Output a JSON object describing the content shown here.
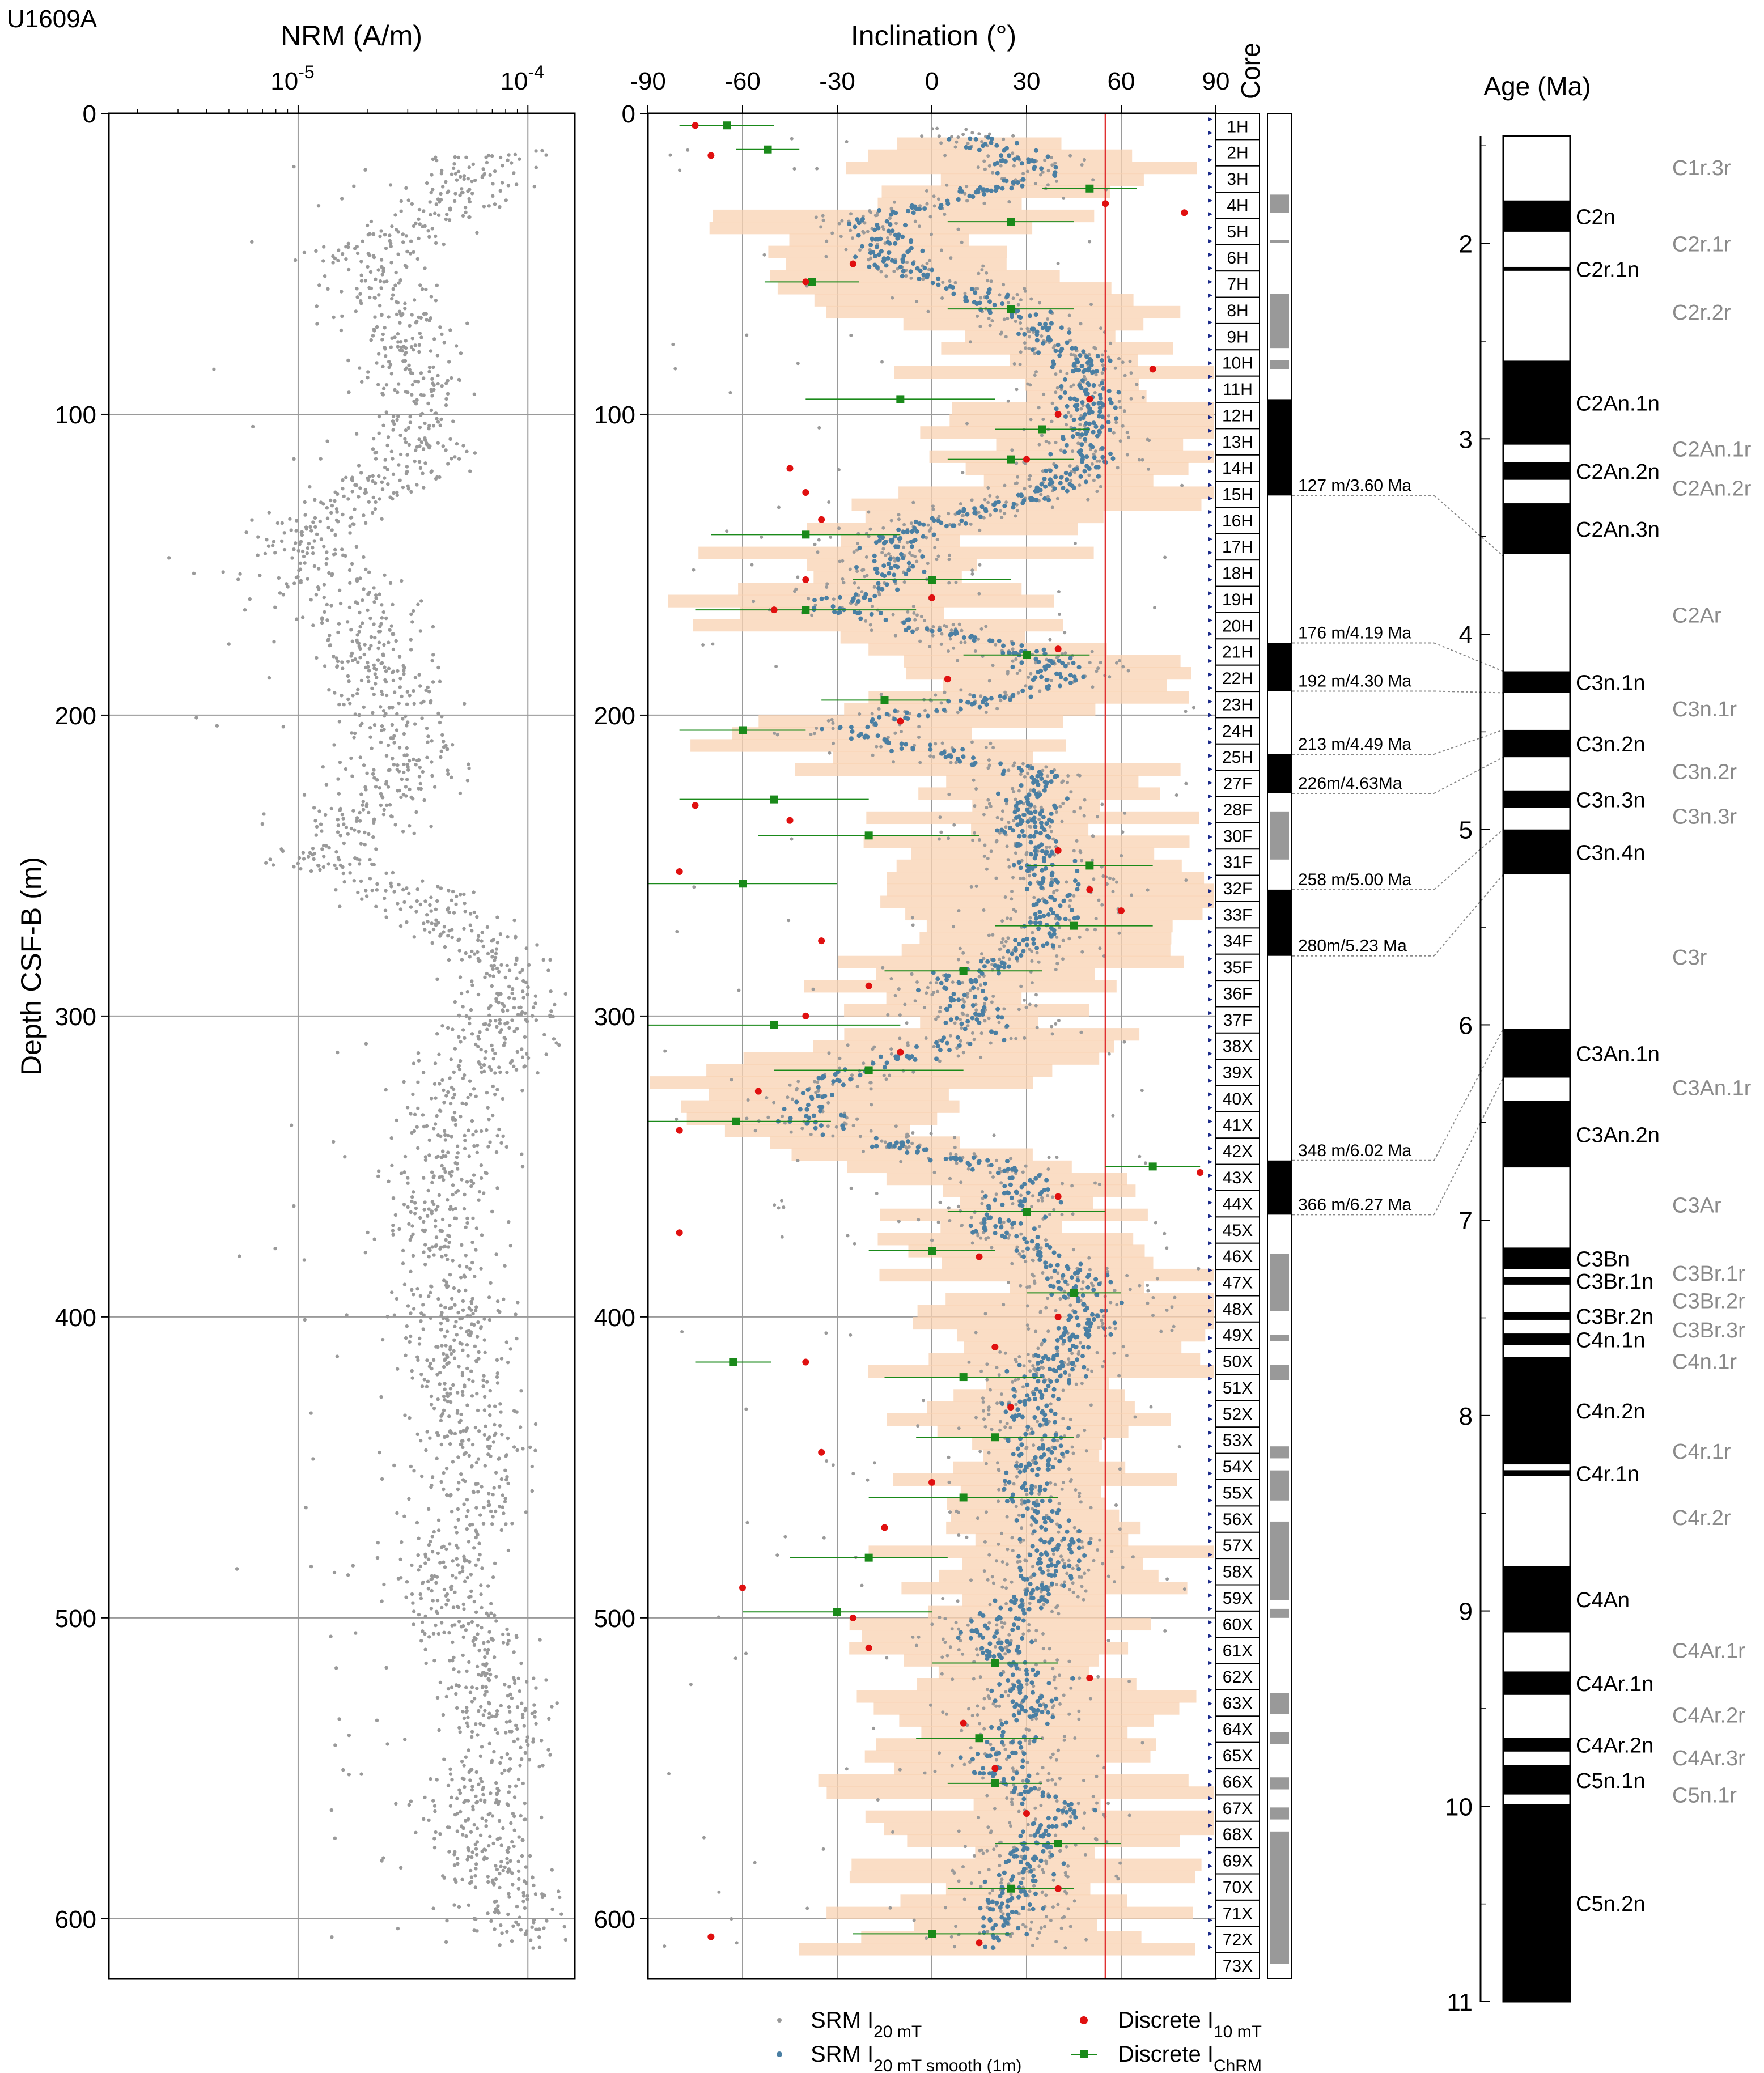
{
  "site": "U1609A",
  "colors": {
    "grid": "#9a9a9a",
    "srm": "#9a9a9a",
    "smooth": "#4a7fa3",
    "band": "#f8d2b2",
    "discrete10": "#e01010",
    "chrm": "#1a8a1a",
    "gad": "#e03030",
    "coreTri": "#1a2a8a",
    "black": "#000000"
  },
  "chart_data": [
    {
      "name": "NRM",
      "type": "scatter",
      "xlabel": "NRM (A/m)",
      "ylabel": "Depth CSF-B (m)",
      "xscale": "log",
      "xlim": [
        1.5e-06,
        0.00016
      ],
      "ylim": [
        0,
        620
      ],
      "x_ticks": [
        {
          "value": 1e-05,
          "base": "10",
          "exp": "-5"
        },
        {
          "value": 0.0001,
          "base": "10",
          "exp": "-4"
        }
      ],
      "y_ticks": [
        0,
        100,
        200,
        300,
        400,
        500,
        600
      ],
      "grid": true,
      "depth_profile": [
        {
          "depth": 10,
          "median": 8e-05
        },
        {
          "depth": 45,
          "median": 1.8e-05
        },
        {
          "depth": 75,
          "median": 3e-05
        },
        {
          "depth": 110,
          "median": 3.5e-05
        },
        {
          "depth": 140,
          "median": 1e-05
        },
        {
          "depth": 180,
          "median": 2.2e-05
        },
        {
          "depth": 215,
          "median": 3e-05
        },
        {
          "depth": 250,
          "median": 1.3e-05
        },
        {
          "depth": 290,
          "median": 9e-05
        },
        {
          "depth": 330,
          "median": 4.5e-05
        },
        {
          "depth": 370,
          "median": 4e-05
        },
        {
          "depth": 410,
          "median": 5e-05
        },
        {
          "depth": 450,
          "median": 6e-05
        },
        {
          "depth": 490,
          "median": 4e-05
        },
        {
          "depth": 530,
          "median": 8e-05
        },
        {
          "depth": 570,
          "median": 6e-05
        },
        {
          "depth": 605,
          "median": 9e-05
        }
      ]
    },
    {
      "name": "Inclination",
      "type": "scatter",
      "xlabel": "Inclination (°)",
      "xlim": [
        -90,
        90
      ],
      "ylim": [
        0,
        620
      ],
      "x_ticks": [
        -90,
        -60,
        -30,
        0,
        30,
        60,
        90
      ],
      "y_ticks": [
        0,
        100,
        200,
        300,
        400,
        500,
        600
      ],
      "grid": true,
      "gad_inclination": 55,
      "smooth_profile": [
        {
          "depth": 5,
          "inc": 10
        },
        {
          "depth": 20,
          "inc": 35
        },
        {
          "depth": 35,
          "inc": -20
        },
        {
          "depth": 50,
          "inc": -10
        },
        {
          "depth": 65,
          "inc": 25
        },
        {
          "depth": 80,
          "inc": 45
        },
        {
          "depth": 95,
          "inc": 50
        },
        {
          "depth": 110,
          "inc": 50
        },
        {
          "depth": 125,
          "inc": 40
        },
        {
          "depth": 140,
          "inc": -10
        },
        {
          "depth": 155,
          "inc": -15
        },
        {
          "depth": 165,
          "inc": -30
        },
        {
          "depth": 180,
          "inc": 35
        },
        {
          "depth": 190,
          "inc": 40
        },
        {
          "depth": 205,
          "inc": -30
        },
        {
          "depth": 220,
          "inc": 35
        },
        {
          "depth": 240,
          "inc": 30
        },
        {
          "depth": 260,
          "inc": 40
        },
        {
          "depth": 275,
          "inc": 35
        },
        {
          "depth": 290,
          "inc": 5
        },
        {
          "depth": 305,
          "inc": 20
        },
        {
          "depth": 320,
          "inc": -30
        },
        {
          "depth": 335,
          "inc": -40
        },
        {
          "depth": 355,
          "inc": 35
        },
        {
          "depth": 370,
          "inc": 20
        },
        {
          "depth": 385,
          "inc": 45
        },
        {
          "depth": 400,
          "inc": 50
        },
        {
          "depth": 415,
          "inc": 40
        },
        {
          "depth": 430,
          "inc": 30
        },
        {
          "depth": 445,
          "inc": 35
        },
        {
          "depth": 460,
          "inc": 30
        },
        {
          "depth": 475,
          "inc": 40
        },
        {
          "depth": 490,
          "inc": 35
        },
        {
          "depth": 505,
          "inc": 15
        },
        {
          "depth": 520,
          "inc": 30
        },
        {
          "depth": 535,
          "inc": 30
        },
        {
          "depth": 550,
          "inc": 20
        },
        {
          "depth": 565,
          "inc": 40
        },
        {
          "depth": 580,
          "inc": 30
        },
        {
          "depth": 595,
          "inc": 25
        },
        {
          "depth": 610,
          "inc": 20
        }
      ],
      "discrete_10mT": [
        {
          "depth": 4,
          "inc": -75
        },
        {
          "depth": 14,
          "inc": -70
        },
        {
          "depth": 30,
          "inc": 55
        },
        {
          "depth": 33,
          "inc": 80
        },
        {
          "depth": 50,
          "inc": -25
        },
        {
          "depth": 56,
          "inc": -40
        },
        {
          "depth": 85,
          "inc": 70
        },
        {
          "depth": 95,
          "inc": 50
        },
        {
          "depth": 100,
          "inc": 40
        },
        {
          "depth": 115,
          "inc": 30
        },
        {
          "depth": 118,
          "inc": -45
        },
        {
          "depth": 126,
          "inc": -40
        },
        {
          "depth": 135,
          "inc": -35
        },
        {
          "depth": 155,
          "inc": -40
        },
        {
          "depth": 161,
          "inc": 0
        },
        {
          "depth": 165,
          "inc": -50
        },
        {
          "depth": 178,
          "inc": 40
        },
        {
          "depth": 188,
          "inc": 5
        },
        {
          "depth": 202,
          "inc": -10
        },
        {
          "depth": 230,
          "inc": -75
        },
        {
          "depth": 235,
          "inc": -45
        },
        {
          "depth": 245,
          "inc": 40
        },
        {
          "depth": 252,
          "inc": -80
        },
        {
          "depth": 258,
          "inc": 50
        },
        {
          "depth": 265,
          "inc": 60
        },
        {
          "depth": 275,
          "inc": -35
        },
        {
          "depth": 290,
          "inc": -20
        },
        {
          "depth": 300,
          "inc": -40
        },
        {
          "depth": 312,
          "inc": -10
        },
        {
          "depth": 325,
          "inc": -55
        },
        {
          "depth": 338,
          "inc": -80
        },
        {
          "depth": 352,
          "inc": 85
        },
        {
          "depth": 360,
          "inc": 40
        },
        {
          "depth": 372,
          "inc": -80
        },
        {
          "depth": 380,
          "inc": 15
        },
        {
          "depth": 400,
          "inc": 40
        },
        {
          "depth": 410,
          "inc": 20
        },
        {
          "depth": 415,
          "inc": -40
        },
        {
          "depth": 430,
          "inc": 25
        },
        {
          "depth": 445,
          "inc": -35
        },
        {
          "depth": 455,
          "inc": 0
        },
        {
          "depth": 470,
          "inc": -15
        },
        {
          "depth": 490,
          "inc": -60
        },
        {
          "depth": 500,
          "inc": -25
        },
        {
          "depth": 510,
          "inc": -20
        },
        {
          "depth": 520,
          "inc": 50
        },
        {
          "depth": 535,
          "inc": 10
        },
        {
          "depth": 550,
          "inc": 20
        },
        {
          "depth": 565,
          "inc": 30
        },
        {
          "depth": 590,
          "inc": 40
        },
        {
          "depth": 606,
          "inc": -70
        },
        {
          "depth": 608,
          "inc": 15
        }
      ],
      "discrete_chrm": [
        {
          "depth": 4,
          "inc": -65,
          "err": 15
        },
        {
          "depth": 12,
          "inc": -52,
          "err": 10
        },
        {
          "depth": 25,
          "inc": 50,
          "err": 15
        },
        {
          "depth": 36,
          "inc": 25,
          "err": 20
        },
        {
          "depth": 56,
          "inc": -38,
          "err": 15
        },
        {
          "depth": 65,
          "inc": 25,
          "err": 20
        },
        {
          "depth": 95,
          "inc": -10,
          "err": 30
        },
        {
          "depth": 105,
          "inc": 35,
          "err": 15
        },
        {
          "depth": 115,
          "inc": 25,
          "err": 20
        },
        {
          "depth": 140,
          "inc": -40,
          "err": 30
        },
        {
          "depth": 155,
          "inc": 0,
          "err": 25
        },
        {
          "depth": 165,
          "inc": -40,
          "err": 35
        },
        {
          "depth": 180,
          "inc": 30,
          "err": 20
        },
        {
          "depth": 195,
          "inc": -15,
          "err": 20
        },
        {
          "depth": 205,
          "inc": -60,
          "err": 20
        },
        {
          "depth": 228,
          "inc": -50,
          "err": 30
        },
        {
          "depth": 240,
          "inc": -20,
          "err": 35
        },
        {
          "depth": 250,
          "inc": 50,
          "err": 20
        },
        {
          "depth": 256,
          "inc": -60,
          "err": 30
        },
        {
          "depth": 270,
          "inc": 45,
          "err": 25
        },
        {
          "depth": 285,
          "inc": 10,
          "err": 25
        },
        {
          "depth": 303,
          "inc": -50,
          "err": 40
        },
        {
          "depth": 318,
          "inc": -20,
          "err": 30
        },
        {
          "depth": 335,
          "inc": -62,
          "err": 30
        },
        {
          "depth": 350,
          "inc": 70,
          "err": 15
        },
        {
          "depth": 365,
          "inc": 30,
          "err": 25
        },
        {
          "depth": 378,
          "inc": 0,
          "err": 20
        },
        {
          "depth": 392,
          "inc": 45,
          "err": 15
        },
        {
          "depth": 415,
          "inc": -63,
          "err": 12
        },
        {
          "depth": 420,
          "inc": 10,
          "err": 25
        },
        {
          "depth": 440,
          "inc": 20,
          "err": 25
        },
        {
          "depth": 460,
          "inc": 10,
          "err": 30
        },
        {
          "depth": 480,
          "inc": -20,
          "err": 25
        },
        {
          "depth": 498,
          "inc": -30,
          "err": 30
        },
        {
          "depth": 515,
          "inc": 20,
          "err": 20
        },
        {
          "depth": 540,
          "inc": 15,
          "err": 20
        },
        {
          "depth": 555,
          "inc": 20,
          "err": 15
        },
        {
          "depth": 575,
          "inc": 40,
          "err": 20
        },
        {
          "depth": 590,
          "inc": 25,
          "err": 20
        },
        {
          "depth": 605,
          "inc": 0,
          "err": 25
        }
      ]
    },
    {
      "name": "Age",
      "type": "column",
      "ylabel": "Age (Ma)",
      "ylim": [
        1.45,
        11
      ],
      "y_ticks": [
        2,
        3,
        4,
        5,
        6,
        7,
        8,
        9,
        10,
        11
      ],
      "normal": [
        {
          "from": 1.78,
          "to": 1.94,
          "label": "C2n"
        },
        {
          "from": 2.12,
          "to": 2.14,
          "label": "C2r.1n"
        },
        {
          "from": 2.6,
          "to": 3.03,
          "label": "C2An.1n"
        },
        {
          "from": 3.12,
          "to": 3.21,
          "label": "C2An.2n"
        },
        {
          "from": 3.33,
          "to": 3.59,
          "label": "C2An.3n"
        },
        {
          "from": 4.19,
          "to": 4.3,
          "label": "C3n.1n"
        },
        {
          "from": 4.49,
          "to": 4.63,
          "label": "C3n.2n"
        },
        {
          "from": 4.8,
          "to": 4.89,
          "label": "C3n.3n"
        },
        {
          "from": 5.0,
          "to": 5.23,
          "label": "C3n.4n"
        },
        {
          "from": 6.02,
          "to": 6.27,
          "label": "C3An.1n"
        },
        {
          "from": 6.39,
          "to": 6.73,
          "label": "C3An.2n"
        },
        {
          "from": 7.14,
          "to": 7.25,
          "label": "C3Bn"
        },
        {
          "from": 7.29,
          "to": 7.33,
          "label": "C3Br.1n"
        },
        {
          "from": 7.47,
          "to": 7.51,
          "label": "C3Br.2n"
        },
        {
          "from": 7.58,
          "to": 7.64,
          "label": "C4n.1n"
        },
        {
          "from": 7.7,
          "to": 8.25,
          "label": "C4n.2n"
        },
        {
          "from": 8.28,
          "to": 8.31,
          "label": "C4r.1n"
        },
        {
          "from": 8.77,
          "to": 9.11,
          "label": "C4An"
        },
        {
          "from": 9.31,
          "to": 9.43,
          "label": "C4Ar.1n"
        },
        {
          "from": 9.65,
          "to": 9.72,
          "label": "C4Ar.2n"
        },
        {
          "from": 9.79,
          "to": 9.94,
          "label": "C5n.1n"
        },
        {
          "from": 9.99,
          "to": 11.05,
          "label": "C5n.2n"
        }
      ],
      "reversed_labels": [
        {
          "age": 1.61,
          "label": "C1r.3r"
        },
        {
          "age": 2.0,
          "label": "C2r.1r"
        },
        {
          "age": 2.35,
          "label": "C2r.2r"
        },
        {
          "age": 3.05,
          "label": "C2An.1r"
        },
        {
          "age": 3.25,
          "label": "C2An.2r"
        },
        {
          "age": 3.9,
          "label": "C2Ar"
        },
        {
          "age": 4.38,
          "label": "C3n.1r"
        },
        {
          "age": 4.7,
          "label": "C3n.2r"
        },
        {
          "age": 4.93,
          "label": "C3n.3r"
        },
        {
          "age": 5.65,
          "label": "C3r"
        },
        {
          "age": 6.32,
          "label": "C3An.1r"
        },
        {
          "age": 6.92,
          "label": "C3Ar"
        },
        {
          "age": 7.27,
          "label": "C3Br.1r"
        },
        {
          "age": 7.41,
          "label": "C3Br.2r"
        },
        {
          "age": 7.56,
          "label": "C3Br.3r"
        },
        {
          "age": 7.72,
          "label": "C4n.1r"
        },
        {
          "age": 8.18,
          "label": "C4r.1r"
        },
        {
          "age": 8.52,
          "label": "C4r.2r"
        },
        {
          "age": 9.2,
          "label": "C4Ar.1r"
        },
        {
          "age": 9.53,
          "label": "C4Ar.2r"
        },
        {
          "age": 9.75,
          "label": "C4Ar.3r"
        },
        {
          "age": 9.94,
          "label": "C5n.1r"
        }
      ]
    }
  ],
  "cores": [
    "1H",
    "2H",
    "3H",
    "4H",
    "5H",
    "6H",
    "7H",
    "8H",
    "9H",
    "10H",
    "11H",
    "12H",
    "13H",
    "14H",
    "15H",
    "16H",
    "17H",
    "18H",
    "19H",
    "20H",
    "21H",
    "22H",
    "23H",
    "24H",
    "25H",
    "27F",
    "28F",
    "30F",
    "31F",
    "32F",
    "33F",
    "34F",
    "35F",
    "36F",
    "37F",
    "38X",
    "39X",
    "40X",
    "41X",
    "42X",
    "43X",
    "44X",
    "45X",
    "46X",
    "47X",
    "48X",
    "49X",
    "50X",
    "51X",
    "52X",
    "53X",
    "54X",
    "55X",
    "56X",
    "57X",
    "58X",
    "59X",
    "60X",
    "61X",
    "62X",
    "63X",
    "64X",
    "65X",
    "66X",
    "67X",
    "68X",
    "69X",
    "70X",
    "71X",
    "72X",
    "73X"
  ],
  "core_label": "Core",
  "polarity_column": {
    "normal": [
      [
        95,
        127
      ],
      [
        176,
        192
      ],
      [
        213,
        226
      ],
      [
        258,
        280
      ],
      [
        348,
        366
      ]
    ],
    "ambiguous": [
      [
        27,
        33
      ],
      [
        42,
        43
      ],
      [
        60,
        78
      ],
      [
        82,
        85
      ],
      [
        232,
        248
      ],
      [
        379,
        398
      ],
      [
        406,
        408
      ],
      [
        416,
        421
      ],
      [
        443,
        447
      ],
      [
        451,
        461
      ],
      [
        468,
        494
      ],
      [
        497,
        500
      ],
      [
        525,
        532
      ],
      [
        538,
        542
      ],
      [
        553,
        557
      ],
      [
        563,
        567
      ],
      [
        571,
        615
      ]
    ]
  },
  "tie_points": [
    {
      "depth": 127,
      "age": 3.6,
      "label": "127 m/3.60 Ma"
    },
    {
      "depth": 176,
      "age": 4.19,
      "label": "176 m/4.19 Ma"
    },
    {
      "depth": 192,
      "age": 4.3,
      "label": "192 m/4.30 Ma"
    },
    {
      "depth": 213,
      "age": 4.49,
      "label": "213 m/4.49 Ma"
    },
    {
      "depth": 226,
      "age": 4.63,
      "label": "226m/4.63Ma"
    },
    {
      "depth": 258,
      "age": 5.0,
      "label": "258 m/5.00 Ma"
    },
    {
      "depth": 280,
      "age": 5.23,
      "label": "280m/5.23 Ma"
    },
    {
      "depth": 348,
      "age": 6.02,
      "label": "348 m/6.02 Ma"
    },
    {
      "depth": 366,
      "age": 6.27,
      "label": "366 m/6.27 Ma"
    }
  ],
  "legend": {
    "srm": {
      "main": "SRM I",
      "sub": "20 mT"
    },
    "smooth": {
      "main": "SRM I",
      "sub": "20 mT smooth (1m)"
    },
    "discrete10": {
      "main": "Discrete I",
      "sub": "10 mT"
    },
    "chrm": {
      "main": "Discrete I",
      "sub": "ChRM"
    }
  }
}
